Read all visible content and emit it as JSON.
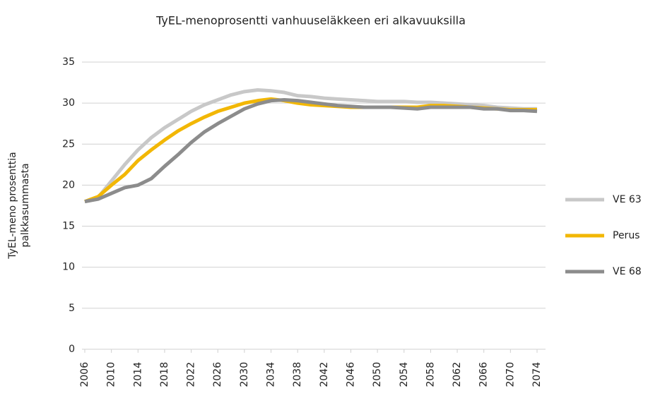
{
  "chart_data": {
    "type": "line",
    "title": "TyEL-menoprosentti vanhuuseläkkeen eri alkavuuksilla",
    "ylabel": [
      "TyEL-meno prosenttia",
      "palkkasummasta"
    ],
    "x": [
      2006,
      2008,
      2010,
      2012,
      2014,
      2016,
      2018,
      2020,
      2022,
      2024,
      2026,
      2028,
      2030,
      2032,
      2034,
      2036,
      2038,
      2040,
      2042,
      2044,
      2046,
      2048,
      2050,
      2052,
      2054,
      2056,
      2058,
      2060,
      2062,
      2064,
      2066,
      2068,
      2070,
      2072,
      2074
    ],
    "xlim": [
      2006,
      2074
    ],
    "xticks": [
      2006,
      2010,
      2014,
      2018,
      2022,
      2026,
      2030,
      2034,
      2038,
      2042,
      2046,
      2050,
      2054,
      2058,
      2062,
      2066,
      2070,
      2074
    ],
    "ylim": [
      0,
      35
    ],
    "yticks": [
      0,
      5,
      10,
      15,
      20,
      25,
      30,
      35
    ],
    "grid": true,
    "legend": "right",
    "series": [
      {
        "name": "VE 63",
        "color": "#c8c8c8",
        "values": [
          18,
          18.5,
          20.5,
          22.5,
          24.3,
          25.8,
          27,
          28,
          29,
          29.8,
          30.4,
          31,
          31.4,
          31.6,
          31.5,
          31.3,
          30.9,
          30.8,
          30.6,
          30.5,
          30.4,
          30.3,
          30.2,
          30.2,
          30.2,
          30.1,
          30.1,
          30,
          29.9,
          29.8,
          29.7,
          29.5,
          29.4,
          29.3,
          29.3
        ]
      },
      {
        "name": "Perus",
        "color": "#f2b705",
        "values": [
          18,
          18.6,
          20,
          21.3,
          23,
          24.3,
          25.5,
          26.6,
          27.5,
          28.3,
          29,
          29.5,
          30,
          30.3,
          30.5,
          30.3,
          30,
          29.8,
          29.7,
          29.6,
          29.5,
          29.5,
          29.5,
          29.5,
          29.5,
          29.5,
          29.7,
          29.7,
          29.6,
          29.5,
          29.4,
          29.3,
          29.2,
          29.2,
          29.2
        ]
      },
      {
        "name": "VE 68",
        "color": "#8c8c8c",
        "values": [
          18,
          18.3,
          19,
          19.7,
          20,
          20.8,
          22.3,
          23.7,
          25.2,
          26.5,
          27.5,
          28.4,
          29.3,
          29.9,
          30.3,
          30.4,
          30.3,
          30.1,
          29.9,
          29.7,
          29.6,
          29.5,
          29.5,
          29.5,
          29.4,
          29.3,
          29.5,
          29.5,
          29.5,
          29.5,
          29.3,
          29.3,
          29.1,
          29.1,
          29
        ]
      }
    ]
  }
}
